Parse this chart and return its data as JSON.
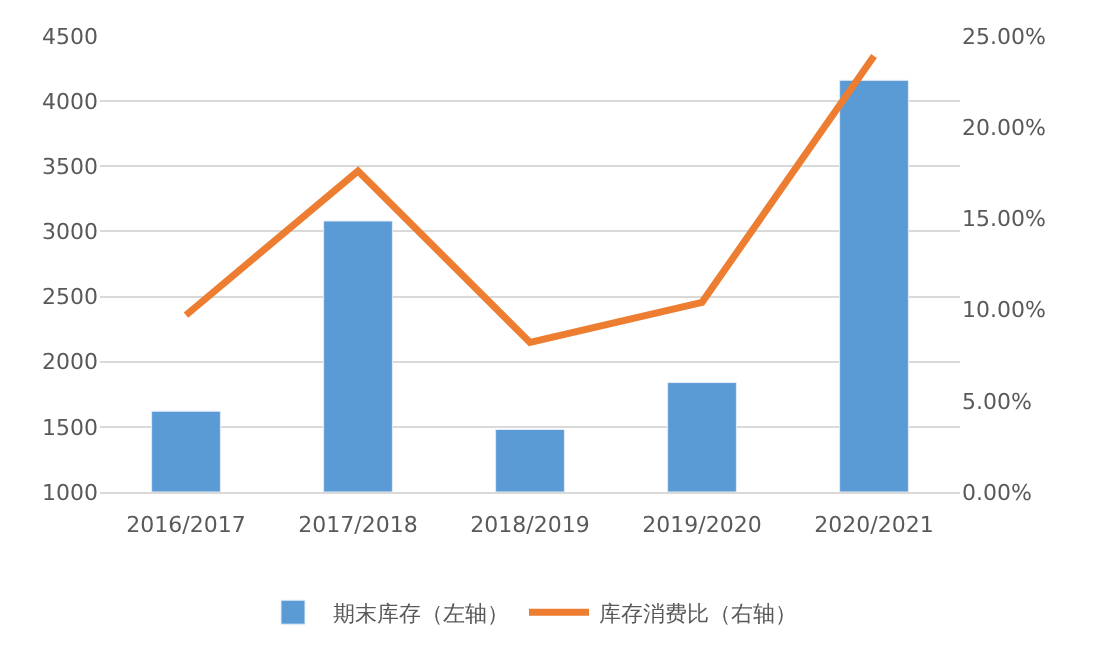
{
  "chart_data": {
    "type": "bar",
    "categories": [
      "2016/2017",
      "2017/2018",
      "2018/2019",
      "2019/2020",
      "2020/2021"
    ],
    "series": [
      {
        "name": "期末库存（左轴）",
        "color": "#5b9bd5",
        "values": [
          1620,
          3080,
          1480,
          1840,
          4160
        ]
      },
      {
        "name": "库存消费比（右轴）",
        "type": "line",
        "axis": "y2",
        "color": "#ed7d31",
        "values": [
          9.7,
          17.6,
          8.2,
          10.4,
          23.9
        ]
      }
    ],
    "ylim": [
      1000,
      4500
    ],
    "yticks": [
      1000,
      1500,
      2000,
      2500,
      3000,
      3500,
      4000,
      4500
    ],
    "y2lim": [
      0,
      25
    ],
    "y2ticks": [
      {
        "value": 0,
        "label": "0.00%"
      },
      {
        "value": 5,
        "label": "5.00%"
      },
      {
        "value": 10,
        "label": "10.00%"
      },
      {
        "value": 15,
        "label": "15.00%"
      },
      {
        "value": 20,
        "label": "20.00%"
      },
      {
        "value": 25,
        "label": "25.00%"
      }
    ],
    "grid": "y",
    "legend": "bottom",
    "marker": "none",
    "line_style": "solid"
  }
}
